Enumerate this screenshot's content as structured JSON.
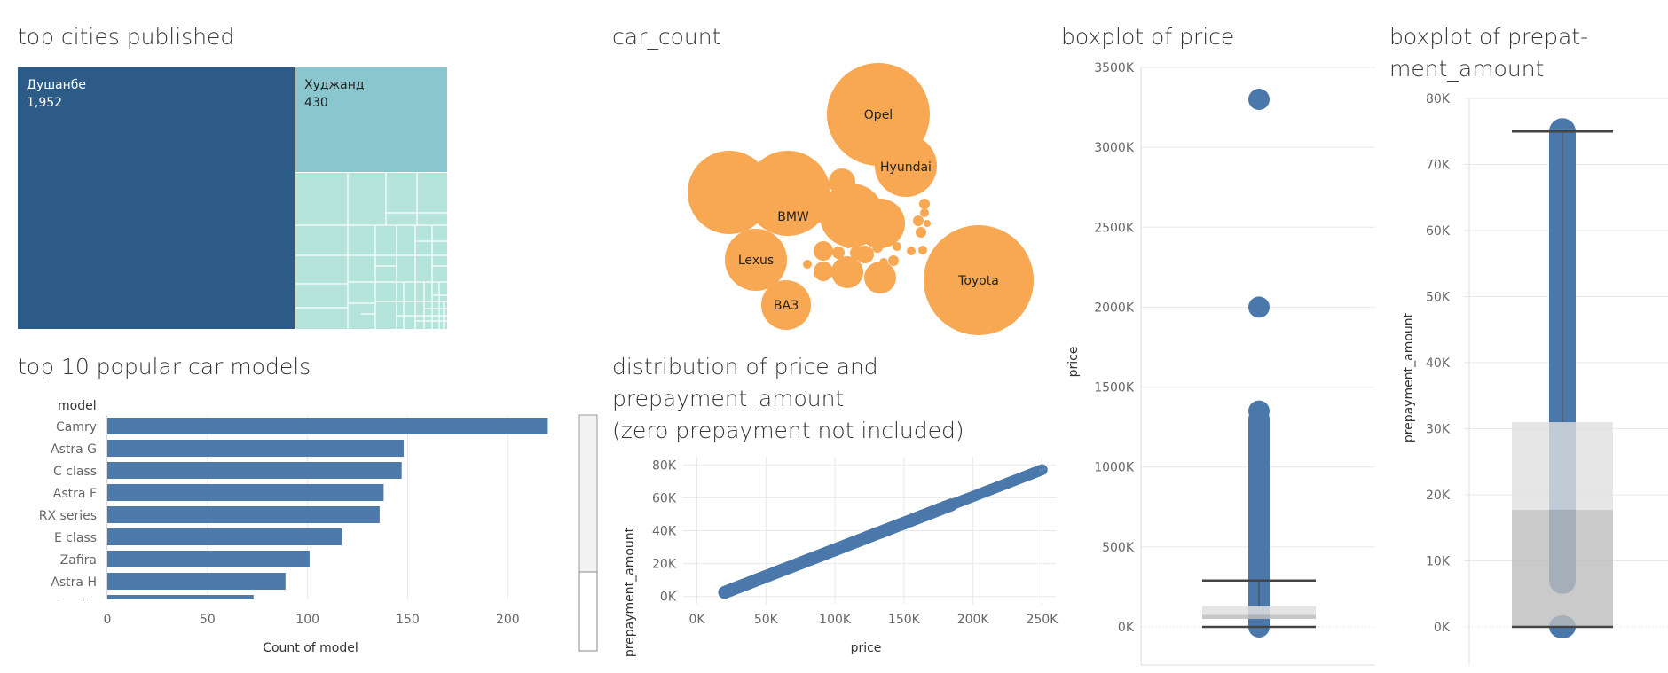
{
  "colors": {
    "treemap_main": "#2b5b86",
    "treemap_second": "#8ac6cd",
    "treemap_small": "#b3e3d9",
    "bar": "#4d7aab",
    "bubble": "#f8a752",
    "point": "#4a78aa",
    "grid": "#e8e8e8",
    "box_upper": "#e0e0e0",
    "box_lower": "#bdbdbd",
    "whisker": "#444444"
  },
  "treemap": {
    "title": "top cities published",
    "nodes": [
      {
        "name": "Душанбе",
        "label": "1,952",
        "value": 1952
      },
      {
        "name": "Худжанд",
        "label": "430",
        "value": 430
      }
    ]
  },
  "bubbles": {
    "title": "car_count",
    "items": [
      {
        "name": "Opel"
      },
      {
        "name": "Hyundai"
      },
      {
        "name": "BMW"
      },
      {
        "name": "Lexus"
      },
      {
        "name": "Toyota"
      },
      {
        "name": "ВАЗ"
      }
    ]
  },
  "boxplot_price": {
    "title": "boxplot of price"
  },
  "boxplot_prepay": {
    "title": "boxplot of prepat-ment_amount"
  },
  "bars": {
    "title": "top 10 popular car models"
  },
  "scatter": {
    "title_line1": "distribution of price and",
    "title_line2": "prepayment_amount",
    "title_line3": "(zero prepayment not included)"
  },
  "chart_data": [
    {
      "type": "bar",
      "title": "top 10 popular car models",
      "row_header": "model",
      "xlabel": "Count of model",
      "categories": [
        "Camry",
        "Astra G",
        "C class",
        "Astra F",
        "RX series",
        "E class",
        "Zafira",
        "Astra H",
        "Corolla"
      ],
      "values": [
        220,
        148,
        147,
        138,
        136,
        117,
        101,
        89,
        73
      ],
      "xlim": [
        0,
        230
      ],
      "xticks": [
        0,
        50,
        100,
        150,
        200
      ],
      "xtick_labels": [
        "0",
        "50",
        "100",
        "150",
        "200"
      ]
    },
    {
      "type": "scatter",
      "title": "distribution of price and prepayment_amount (zero prepayment not included)",
      "xlabel": "price",
      "ylabel": "prepayment_amount",
      "xlim": [
        -10000,
        260000
      ],
      "ylim": [
        -5000,
        85000
      ],
      "xticks": [
        0,
        50000,
        100000,
        150000,
        200000,
        250000
      ],
      "xtick_labels": [
        "0K",
        "50K",
        "100K",
        "150K",
        "200K",
        "250K"
      ],
      "yticks": [
        0,
        20000,
        40000,
        60000,
        80000
      ],
      "ytick_labels": [
        "0K",
        "20K",
        "40K",
        "60K",
        "80K"
      ],
      "line_start": [
        20000,
        2500
      ],
      "line_end": [
        250000,
        77000
      ]
    },
    {
      "type": "scatter",
      "title": "boxplot of price",
      "ylabel": "price",
      "ylim": [
        0,
        3500000
      ],
      "yticks": [
        0,
        500000,
        1000000,
        1500000,
        2000000,
        2500000,
        3000000,
        3500000
      ],
      "ytick_labels": [
        "0K",
        "500K",
        "1000K",
        "1500K",
        "2000K",
        "2500K",
        "3000K",
        "3500K"
      ],
      "outliers": [
        3300000,
        2000000,
        1350000
      ],
      "dense_range": [
        0,
        1300000
      ],
      "whisker_low": 0,
      "q1": 50000,
      "median": 75000,
      "q3": 130000,
      "whisker_high": 290000
    },
    {
      "type": "scatter",
      "title": "boxplot of prepat-ment_amount",
      "ylabel": "prepayment_amount",
      "ylim": [
        -2000,
        80000
      ],
      "yticks": [
        0,
        10000,
        20000,
        30000,
        40000,
        50000,
        60000,
        70000,
        80000
      ],
      "ytick_labels": [
        "0K",
        "10K",
        "20K",
        "30K",
        "40K",
        "50K",
        "60K",
        "70K",
        "80K"
      ],
      "dense_range": [
        7000,
        75000
      ],
      "zero_point": 0,
      "whisker_low": 0,
      "q1": 0,
      "median": 17700,
      "q3": 31000,
      "whisker_high": 75000
    }
  ]
}
